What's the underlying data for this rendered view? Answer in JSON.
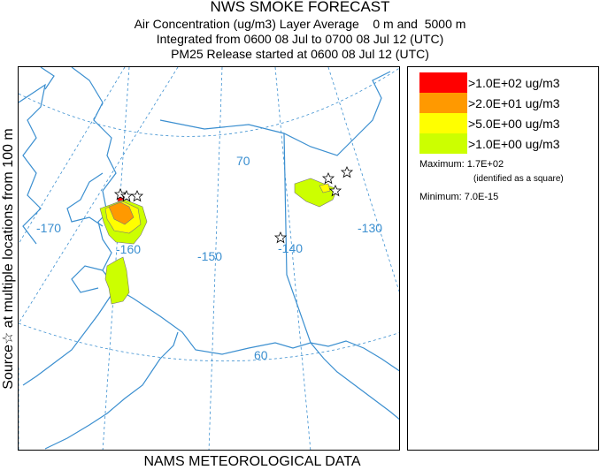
{
  "header": {
    "title": "NWS SMOKE FORECAST",
    "line2": "Air Concentration (ug/m3) Layer Average    0 m and  5000 m",
    "line3": "Integrated from 0600 08 Jul to 0700 08 Jul 12 (UTC)",
    "line4": "PM25 Release started at 0600 08 Jul 12 (UTC)"
  },
  "side_label": "Source☆ at multiple locations from 100 m",
  "footer": "NAMS METEOROLOGICAL DATA",
  "map": {
    "longitude_labels": [
      "-170",
      "-160",
      "-150",
      "-140",
      "-130"
    ],
    "latitude_labels": [
      "70",
      "60"
    ],
    "source_icon": "star-icon",
    "colors": {
      "coast": "#3b8fd0",
      "grid": "#3b8fd0"
    }
  },
  "legend": {
    "levels": [
      {
        "label": ">1.0E+02 ug/m3",
        "color": "#ff0000"
      },
      {
        "label": ">2.0E+01 ug/m3",
        "color": "#ff9900"
      },
      {
        "label": ">5.0E+00 ug/m3",
        "color": "#ffff00"
      },
      {
        "label": ">1.0E+00 ug/m3",
        "color": "#ccff00"
      }
    ],
    "maximum": "Maximum: 1.7E+02",
    "maximum_note": "(identified as a square)",
    "minimum": "Minimum: 7.0E-15"
  }
}
